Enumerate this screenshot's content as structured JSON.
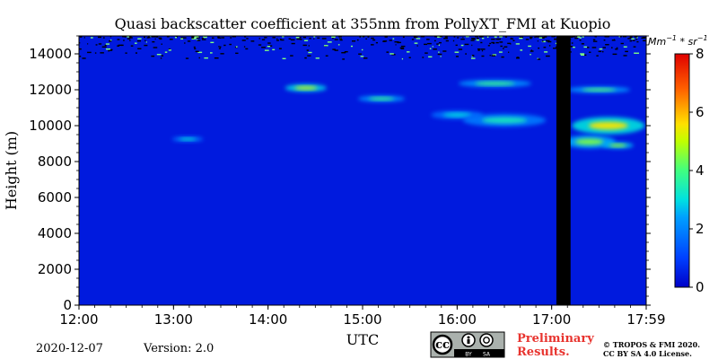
{
  "chart_data": {
    "type": "heatmap",
    "title": "Quasi backscatter coefficient at 355nm from PollyXT_FMI at Kuopio",
    "xlabel": "UTC",
    "ylabel": "Height (m)",
    "x_ticks": [
      "12:00",
      "13:00",
      "14:00",
      "15:00",
      "16:00",
      "17:00",
      "17:59"
    ],
    "y_ticks": [
      "0",
      "2000",
      "4000",
      "6000",
      "8000",
      "10000",
      "12000",
      "14000"
    ],
    "x_range_hours": [
      12.0,
      18.0
    ],
    "y_range_m": [
      0,
      15000
    ],
    "colorbar": {
      "unit_prefix": "Mm",
      "unit_exp1": "−1",
      "unit_mid": " * sr",
      "unit_exp2": "−1",
      "ticks": [
        "0",
        "2",
        "4",
        "6",
        "8"
      ],
      "range": [
        0,
        8
      ]
    },
    "background_value": 0.4,
    "no_data_period": {
      "start_hours": 17.05,
      "end_hours": 17.2
    },
    "features": [
      {
        "x_hours": 14.4,
        "y_m": 12100,
        "value": 5.2,
        "width_hours": 0.4,
        "height_m": 350
      },
      {
        "x_hours": 15.2,
        "y_m": 11500,
        "value": 4.0,
        "width_hours": 0.45,
        "height_m": 300
      },
      {
        "x_hours": 13.15,
        "y_m": 9250,
        "value": 3.2,
        "width_hours": 0.3,
        "height_m": 250
      },
      {
        "x_hours": 16.4,
        "y_m": 12350,
        "value": 4.0,
        "width_hours": 0.7,
        "height_m": 350
      },
      {
        "x_hours": 17.5,
        "y_m": 12000,
        "value": 4.2,
        "width_hours": 0.6,
        "height_m": 300
      },
      {
        "x_hours": 16.0,
        "y_m": 10600,
        "value": 3.0,
        "width_hours": 0.5,
        "height_m": 400
      },
      {
        "x_hours": 16.5,
        "y_m": 10300,
        "value": 3.4,
        "width_hours": 0.8,
        "height_m": 600
      },
      {
        "x_hours": 17.6,
        "y_m": 10000,
        "value": 5.5,
        "width_hours": 0.7,
        "height_m": 800
      },
      {
        "x_hours": 17.4,
        "y_m": 9100,
        "value": 4.5,
        "width_hours": 0.5,
        "height_m": 600
      },
      {
        "x_hours": 17.7,
        "y_m": 8900,
        "value": 4.8,
        "width_hours": 0.3,
        "height_m": 300
      }
    ]
  },
  "footer": {
    "date": "2020-12-07",
    "version": "Version: 2.0",
    "license_badge": {
      "cc": "cc",
      "by": "BY",
      "sa": "SA"
    },
    "preliminary_line1": "Preliminary",
    "preliminary_line2": "Results.",
    "copyright_line1": "© TROPOS & FMI 2020.",
    "copyright_line2": "CC BY SA 4.0 License."
  },
  "colors": {
    "preliminary": "#e8342f",
    "no_data": "#000000"
  }
}
